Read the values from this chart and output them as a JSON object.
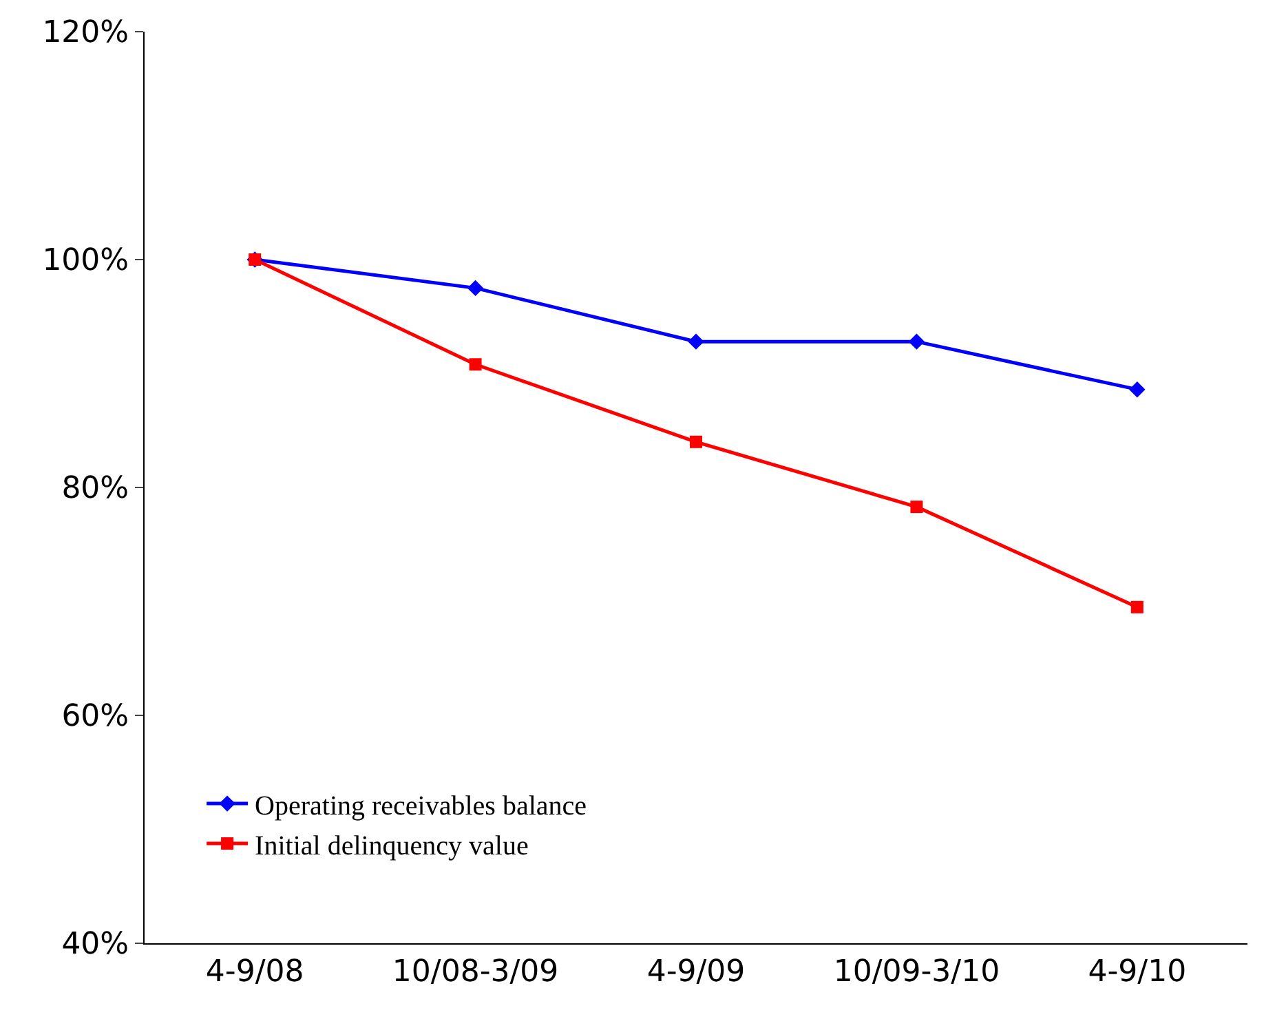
{
  "chart_data": {
    "type": "line",
    "categories": [
      "4-9/08",
      "10/08-3/09",
      "4-9/09",
      "10/09-3/10",
      "4-9/10"
    ],
    "series": [
      {
        "name": "Operating receivables balance",
        "color": "#0000ff",
        "marker": "diamond",
        "values": [
          100,
          97.5,
          92.8,
          92.8,
          88.6
        ]
      },
      {
        "name": "Initial delinquency value",
        "color": "#ff0000",
        "marker": "square",
        "values": [
          100,
          90.8,
          84.0,
          78.3,
          69.5
        ]
      }
    ],
    "ylim": [
      40,
      120
    ],
    "yticks": [
      {
        "value": 40,
        "label": "40%"
      },
      {
        "value": 60,
        "label": "60%"
      },
      {
        "value": 80,
        "label": "80%"
      },
      {
        "value": 100,
        "label": "100%"
      },
      {
        "value": 120,
        "label": "120%"
      }
    ],
    "legend": "bottom left",
    "line_style": "solid"
  }
}
